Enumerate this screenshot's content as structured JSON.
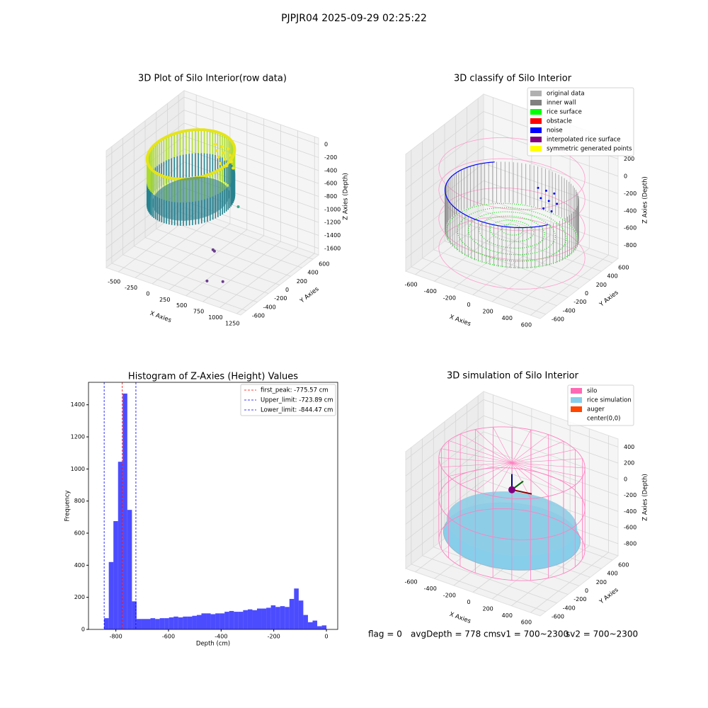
{
  "title": "PJPJR04 2025-09-29 02:25:22",
  "footer": [
    "flag = 0",
    "avgDepth = 778 cm",
    "sv1 = 700~2300",
    "sv2 = 700~2300"
  ],
  "chart_data": [
    {
      "type": "scatter3d",
      "title": "3D Plot of Silo Interior(row data)",
      "xlabel": "X Axies",
      "ylabel": "Y Axies",
      "zlabel": "Z Axies (Depth)",
      "xlim": [
        -680,
        1310
      ],
      "xticks": [
        -500,
        -250,
        0,
        250,
        500,
        750,
        1000,
        1250
      ],
      "ylim": [
        -700,
        700
      ],
      "yticks": [
        -600,
        -400,
        -200,
        0,
        200,
        400,
        600
      ],
      "zlim": [
        -1700,
        100
      ],
      "zticks": [
        -1600,
        -1400,
        -1200,
        -1000,
        -800,
        -600,
        -400,
        -200,
        0
      ]
    },
    {
      "type": "scatter3d",
      "title": "3D classify of Silo Interior",
      "xlabel": "X Axies",
      "ylabel": "Y Axies",
      "zlabel": "Z Axies (Depth)",
      "xlim": [
        -700,
        700
      ],
      "xticks": [
        -600,
        -400,
        -200,
        0,
        200,
        400,
        600
      ],
      "ylim": [
        -700,
        700
      ],
      "yticks": [
        -600,
        -400,
        -200,
        0,
        200,
        400,
        600
      ],
      "zlim": [
        -950,
        400
      ],
      "zticks": [
        -800,
        -600,
        -400,
        -200,
        0,
        200
      ],
      "legend": [
        {
          "name": "original data",
          "color": "#b0b0b0"
        },
        {
          "name": "inner wall",
          "color": "#808080"
        },
        {
          "name": "rice surface",
          "color": "#00ff00"
        },
        {
          "name": "obstacle",
          "color": "#ff0000"
        },
        {
          "name": "noise",
          "color": "#0000ff"
        },
        {
          "name": "interpolated rice surface",
          "color": "#800080"
        },
        {
          "name": "symmetric generated points",
          "color": "#ffff00"
        }
      ]
    },
    {
      "type": "histogram",
      "title": "Histogram of Z-Axies (Height) Values",
      "xlabel": "Depth (cm)",
      "ylabel": "Frequency",
      "color": "#0000ff",
      "bins": [
        -844.5,
        -826.9,
        -809.3,
        -791.7,
        -774.1,
        -756.5,
        -738.9,
        -721.3,
        -703.7,
        -686.1,
        -668.5,
        -650.9,
        -633.3,
        -615.7,
        -598.1,
        -580.5,
        -562.9,
        -545.3,
        -527.7,
        -510.1,
        -492.5,
        -474.9,
        -457.3,
        -439.7,
        -422.1,
        -404.5,
        -386.9,
        -369.3,
        -351.7,
        -334.1,
        -316.5,
        -298.9,
        -281.3,
        -263.7,
        -246.1,
        -228.5,
        -210.9,
        -193.3,
        -175.7,
        -158.1,
        -140.5,
        -122.9,
        -105.3,
        -87.7,
        -70.1,
        -52.5,
        -34.9,
        -17.3,
        0.3
      ],
      "values": [
        70,
        420,
        675,
        1045,
        1470,
        745,
        175,
        65,
        65,
        65,
        70,
        65,
        70,
        70,
        75,
        80,
        75,
        80,
        80,
        85,
        90,
        100,
        100,
        95,
        100,
        100,
        110,
        115,
        110,
        110,
        120,
        125,
        120,
        130,
        130,
        135,
        150,
        140,
        145,
        140,
        190,
        255,
        180,
        90,
        45,
        55,
        20,
        25
      ],
      "xlim": [
        -904,
        43
      ],
      "xticks": [
        -800,
        -600,
        -400,
        -200,
        0
      ],
      "ylim": [
        0,
        1540
      ],
      "yticks": [
        0,
        200,
        400,
        600,
        800,
        1000,
        1200,
        1400
      ],
      "lines": [
        {
          "name": "first_peak: -775.57 cm",
          "value": -775.57,
          "color": "#ff0000"
        },
        {
          "name": "Upper_limit: -723.89 cm",
          "value": -723.89,
          "color": "#0000ff"
        },
        {
          "name": "Lower_limit: -844.47 cm",
          "value": -844.47,
          "color": "#0000ff"
        }
      ]
    },
    {
      "type": "scatter3d",
      "title": "3D simulation of Silo Interior",
      "xlabel": "X Axies",
      "ylabel": "Y Axies",
      "zlabel": "Z Axies (Depth)",
      "xlim": [
        -700,
        700
      ],
      "xticks": [
        -600,
        -400,
        -200,
        0,
        200,
        400,
        600
      ],
      "ylim": [
        -700,
        700
      ],
      "yticks": [
        -600,
        -400,
        -200,
        0,
        200,
        400,
        600
      ],
      "zlim": [
        -950,
        500
      ],
      "zticks": [
        -800,
        -600,
        -400,
        -200,
        0,
        200,
        400
      ],
      "legend": [
        {
          "name": "silo",
          "color": "#ff69b4"
        },
        {
          "name": "rice simulation",
          "color": "#87ceeb"
        },
        {
          "name": "auger",
          "color": "#ff4500"
        },
        {
          "name": "center(0,0)",
          "color": "#ffffff"
        }
      ]
    }
  ]
}
